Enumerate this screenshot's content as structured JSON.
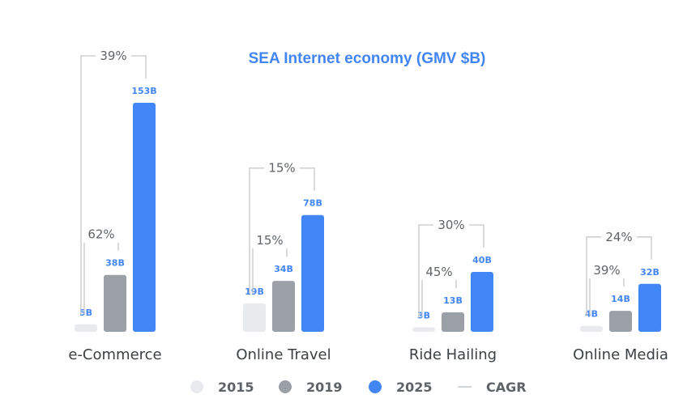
{
  "chart_data": {
    "type": "bar",
    "title": "SEA Internet economy (GMV $B)",
    "categories": [
      "e-Commerce",
      "Online Travel",
      "Ride Hailing",
      "Online Media"
    ],
    "series": [
      {
        "name": "2015",
        "values": [
          5,
          19,
          3,
          4
        ],
        "labels": [
          "5B",
          "19B",
          "3B",
          "4B"
        ],
        "color": "#e8eaed",
        "label_color": "#4285f4"
      },
      {
        "name": "2019",
        "values": [
          38,
          34,
          13,
          14
        ],
        "labels": [
          "38B",
          "34B",
          "13B",
          "14B"
        ],
        "color": "#9aa0a6",
        "label_color": "#4285f4"
      },
      {
        "name": "2025",
        "values": [
          153,
          78,
          40,
          32
        ],
        "labels": [
          "153B",
          "78B",
          "40B",
          "32B"
        ],
        "color": "#4285f4",
        "label_color": "#4285f4"
      }
    ],
    "cagr": {
      "name": "CAGR",
      "short": [
        "62%",
        "15%",
        "45%",
        "39%"
      ],
      "long": [
        "39%",
        "15%",
        "30%",
        "24%"
      ]
    },
    "ylim": [
      0,
      153
    ],
    "legend": "bottom",
    "grid": false,
    "colors": {
      "title": "#4285f4",
      "bracket": "#c4c7ca",
      "text": "#3c4043"
    }
  }
}
